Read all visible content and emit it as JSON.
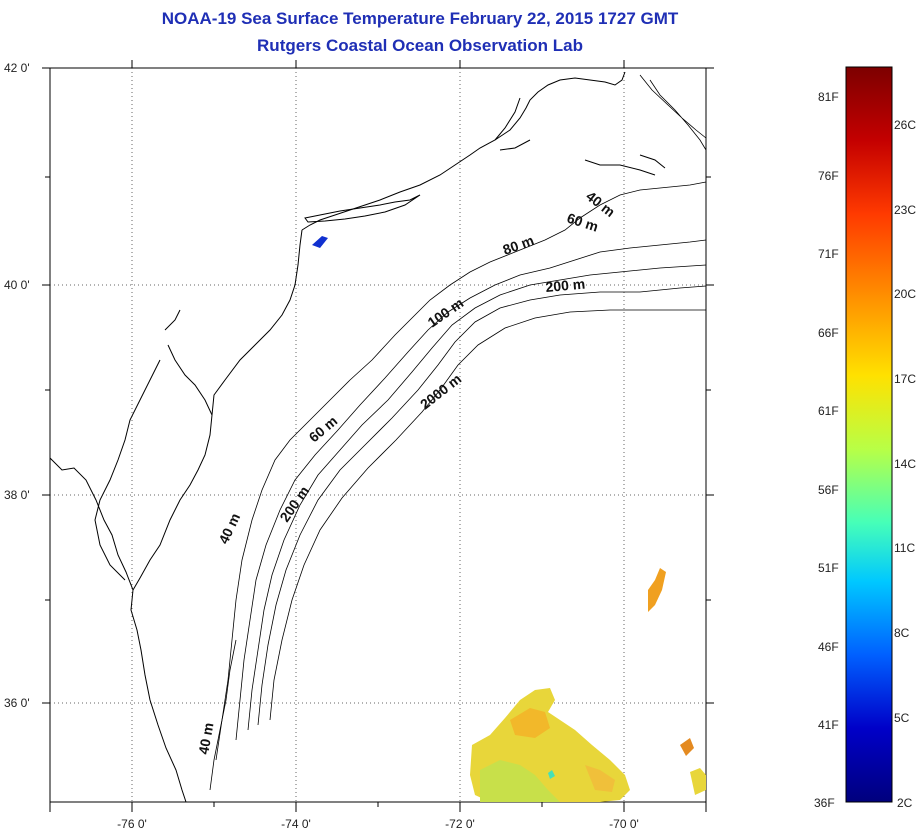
{
  "header": {
    "title_line1": "NOAA-19 Sea Surface Temperature February 22, 2015 1727 GMT",
    "title_line2": "Rutgers Coastal Ocean Observation Lab"
  },
  "map": {
    "lat_labels": [
      "42 0'",
      "40 0'",
      "38 0'",
      "36 0'"
    ],
    "lon_labels": [
      "-76 0'",
      "-74 0'",
      "-72 0'",
      "-70 0'"
    ],
    "depth_labels": [
      "40 m",
      "60 m",
      "80 m",
      "200 m",
      "100 m",
      "2000 m",
      "60 m",
      "40 m",
      "200 m",
      "40 m"
    ]
  },
  "colorbar": {
    "f_labels": [
      "81F",
      "76F",
      "71F",
      "66F",
      "61F",
      "56F",
      "51F",
      "46F",
      "41F",
      "36F"
    ],
    "c_labels": [
      "26C",
      "23C",
      "20C",
      "17C",
      "14C",
      "11C",
      "8C",
      "5C",
      "2C"
    ],
    "colors": [
      "#7d0000",
      "#c40000",
      "#ff3a00",
      "#ff9d00",
      "#ffe100",
      "#b8ff46",
      "#46ffb8",
      "#00c8ff",
      "#0060ff",
      "#0000c8",
      "#00007d"
    ]
  }
}
